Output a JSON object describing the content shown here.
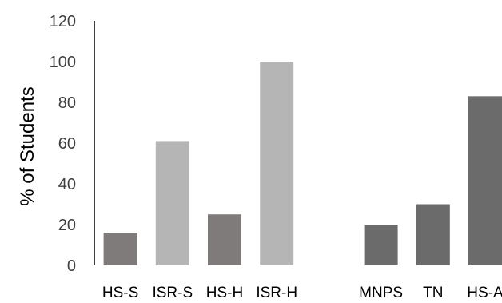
{
  "chart_data": {
    "type": "bar",
    "categories": [
      "HS-S",
      "ISR-S",
      "HS-H",
      "ISR-H",
      "",
      "MNPS",
      "TN",
      "HS-A"
    ],
    "values": [
      16,
      61,
      25,
      100,
      null,
      20,
      30,
      83
    ],
    "bar_colors": [
      "#7f7b7a",
      "#b5b5b5",
      "#7f7b7a",
      "#b5b5b5",
      null,
      "#6b6b6b",
      "#6b6b6b",
      "#6b6b6b"
    ],
    "ylabel": "% of Students",
    "xlabel": "",
    "ylim": [
      0,
      120
    ],
    "yticks": [
      0,
      20,
      40,
      60,
      80,
      100,
      120
    ],
    "grid": false,
    "legend": "none"
  },
  "colors": {
    "axis": "#000000",
    "tick_text": "#3f3f3f"
  }
}
